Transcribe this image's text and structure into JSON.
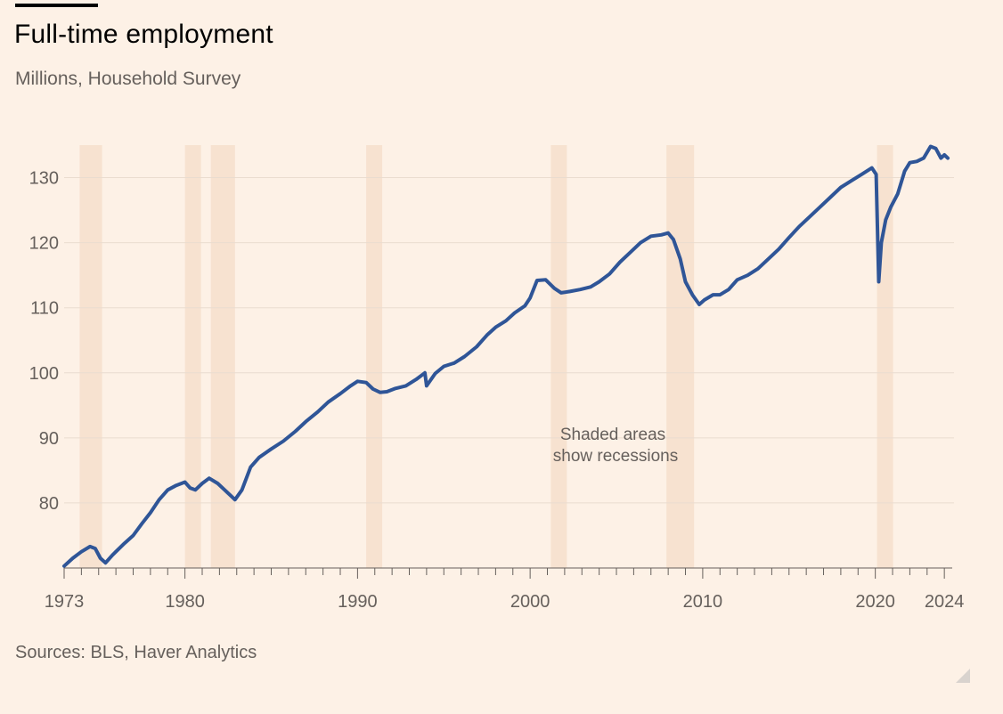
{
  "header": {
    "title": "Full-time employment",
    "subtitle": "Millions, Household Survey"
  },
  "footer": {
    "source": "Sources: BLS, Haver Analytics"
  },
  "colors": {
    "background": "#FDF1E6",
    "line": "#2F5597",
    "recession": "#F7E2D0",
    "grid": "#EADCCF",
    "text": "#66605C"
  },
  "chart_data": {
    "type": "line",
    "title": "Full-time employment",
    "subtitle": "Millions, Household Survey",
    "xlabel": "",
    "ylabel": "",
    "xlim": [
      1973,
      2024.25
    ],
    "ylim": [
      70,
      135
    ],
    "grid": true,
    "x_ticks": [
      "1973",
      "1980",
      "1990",
      "2000",
      "2010",
      "2020",
      "2024"
    ],
    "y_ticks": [
      "80",
      "90",
      "100",
      "110",
      "120",
      "130"
    ],
    "annotation": "Shaded areas show recessions",
    "recessions": [
      [
        1973.9,
        1975.2
      ],
      [
        1980.0,
        1980.5
      ],
      [
        1981.5,
        1982.9
      ],
      [
        1990.5,
        1991.2
      ],
      [
        2001.2,
        2001.9
      ],
      [
        2007.9,
        2009.5
      ],
      [
        2020.1,
        2020.3
      ]
    ],
    "series": [
      {
        "x": [
          1973.0,
          1973.5,
          1974.0,
          1974.5,
          1974.8,
          1975.1,
          1975.4,
          1975.8,
          1976.5,
          1977.0,
          1977.5,
          1978.0,
          1978.5,
          1979.0,
          1979.5,
          1980.0,
          1980.3,
          1980.6,
          1981.0,
          1981.4,
          1981.9,
          1982.3,
          1982.7,
          1982.9,
          1983.3,
          1983.8,
          1984.3,
          1985.0,
          1985.7,
          1986.4,
          1987.0,
          1987.7,
          1988.3,
          1989.0,
          1989.6,
          1990.0,
          1990.5,
          1990.9,
          1991.3,
          1991.7,
          1992.2,
          1992.8,
          1993.4,
          1993.9,
          1994.0,
          1994.5,
          1995.0,
          1995.6,
          1996.2,
          1996.9,
          1997.5,
          1998.0,
          1998.6,
          1999.1,
          1999.7,
          2000.0,
          2000.4,
          2000.9,
          2001.4,
          2001.8,
          2002.3,
          2002.9,
          2003.5,
          2004.0,
          2004.6,
          2005.2,
          2005.8,
          2006.4,
          2007.0,
          2007.6,
          2008.0,
          2008.3,
          2008.7,
          2009.0,
          2009.4,
          2009.8,
          2010.1,
          2010.6,
          2011.0,
          2011.5,
          2012.0,
          2012.6,
          2013.2,
          2013.8,
          2014.4,
          2015.0,
          2015.6,
          2016.2,
          2016.8,
          2017.4,
          2018.0,
          2018.6,
          2019.2,
          2019.8,
          2020.05,
          2020.2,
          2020.35,
          2020.6,
          2020.9,
          2021.3,
          2021.7,
          2022.0,
          2022.4,
          2022.8,
          2023.2,
          2023.5,
          2023.8,
          2024.0,
          2024.2
        ],
        "values": [
          70.3,
          71.5,
          72.5,
          73.3,
          73.0,
          71.5,
          70.8,
          72.0,
          73.8,
          75.0,
          76.8,
          78.5,
          80.5,
          82.0,
          82.7,
          83.2,
          82.3,
          82.0,
          83.0,
          83.8,
          83.0,
          82.0,
          81.0,
          80.5,
          82.0,
          85.5,
          87.0,
          88.3,
          89.5,
          91.0,
          92.5,
          94.0,
          95.5,
          96.8,
          98.0,
          98.7,
          98.5,
          97.5,
          97.0,
          97.1,
          97.6,
          98.0,
          99.0,
          100.0,
          98.0,
          99.9,
          101.0,
          101.5,
          102.5,
          104.0,
          105.8,
          107.0,
          108.0,
          109.2,
          110.3,
          111.5,
          114.2,
          114.3,
          113.0,
          112.3,
          112.5,
          112.8,
          113.2,
          114.0,
          115.2,
          117.0,
          118.5,
          120.0,
          121.0,
          121.2,
          121.5,
          120.5,
          117.5,
          114.0,
          112.0,
          110.5,
          111.2,
          112.0,
          112.0,
          112.8,
          114.3,
          115.0,
          116.0,
          117.5,
          119.0,
          120.8,
          122.5,
          124.0,
          125.5,
          127.0,
          128.5,
          129.5,
          130.5,
          131.5,
          130.5,
          114.0,
          120.0,
          123.5,
          125.5,
          127.5,
          131.0,
          132.3,
          132.5,
          133.0,
          134.8,
          134.5,
          133.0,
          133.5,
          133.0
        ]
      }
    ]
  }
}
